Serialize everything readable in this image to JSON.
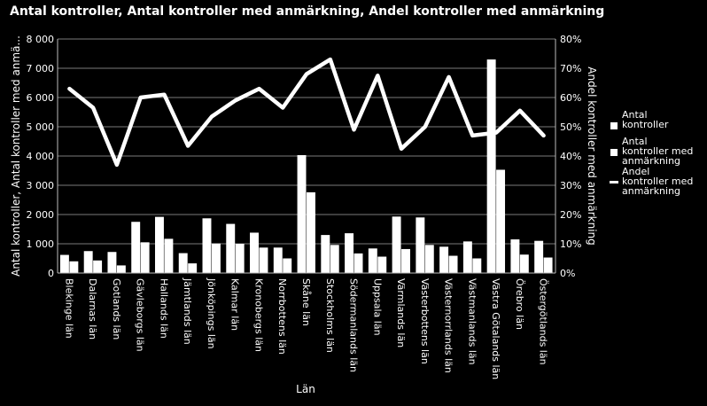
{
  "chart_data": {
    "type": "bar",
    "title": "Antal kontroller, Antal kontroller med anmärkning, Andel kontroller med anmärkning",
    "xlabel": "Län",
    "ylabel": "Antal kontroller, Antal kontroller med anmä...",
    "y2label": "Andel kontroller med anmärkning",
    "ylim": [
      0,
      8000
    ],
    "y2lim": [
      0,
      80
    ],
    "y_ticks": [
      "0",
      "1 000",
      "2 000",
      "3 000",
      "4 000",
      "5 000",
      "6 000",
      "7 000",
      "8 000"
    ],
    "y2_ticks": [
      "0%",
      "10%",
      "20%",
      "30%",
      "40%",
      "50%",
      "60%",
      "70%",
      "80%"
    ],
    "grid": true,
    "legend_position": "right",
    "categories": [
      "Blekinge län",
      "Dalarnas län",
      "Gotlands län",
      "Gävleborgs län",
      "Hallands län",
      "Jämtlands län",
      "Jönköpings län",
      "Kalmar län",
      "Kronobergs län",
      "Norrbottens län",
      "Skåne län",
      "Stockholms län",
      "Södermanlands län",
      "Uppsala län",
      "Värmlands län",
      "Västerbottens län",
      "Västernorrlands län",
      "Västmanlands län",
      "Västra Götalands län",
      "Örebro län",
      "Östergötlands län"
    ],
    "series": [
      {
        "name": "Antal kontroller",
        "type": "bar",
        "values": [
          620,
          750,
          720,
          1750,
          1920,
          680,
          1870,
          1680,
          1380,
          870,
          4030,
          1300,
          1360,
          840,
          1930,
          1900,
          900,
          1080,
          7300,
          1150,
          1100
        ]
      },
      {
        "name": "Antal kontroller med anmärkning",
        "type": "bar",
        "values": [
          400,
          430,
          260,
          1050,
          1170,
          330,
          1010,
          1000,
          870,
          500,
          2760,
          960,
          670,
          560,
          820,
          960,
          590,
          500,
          3530,
          630,
          530
        ]
      },
      {
        "name": "Andel kontroller med anmärkning",
        "type": "line",
        "axis": "right",
        "unit": "%",
        "values": [
          63,
          56.5,
          37,
          60,
          61,
          43.5,
          53.5,
          59,
          63,
          56.5,
          68,
          73,
          49,
          67.5,
          42.5,
          50,
          67,
          47,
          48,
          55.5,
          47
        ]
      }
    ]
  }
}
